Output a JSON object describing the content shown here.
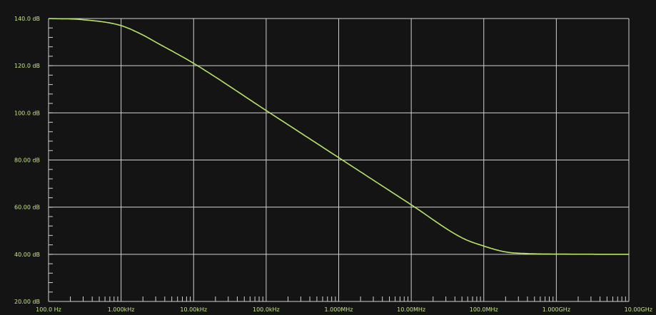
{
  "chart_data": {
    "type": "line",
    "title": "",
    "xlabel": "",
    "ylabel": "",
    "x_scale": "log",
    "x_ticks": [
      {
        "value": 100,
        "label": "100.0 Hz"
      },
      {
        "value": 1000,
        "label": "1.000kHz"
      },
      {
        "value": 10000,
        "label": "10.00kHz"
      },
      {
        "value": 100000,
        "label": "100.0kHz"
      },
      {
        "value": 1000000,
        "label": "1.000MHz"
      },
      {
        "value": 10000000,
        "label": "10.00MHz"
      },
      {
        "value": 100000000,
        "label": "100.0MHz"
      },
      {
        "value": 1000000000,
        "label": "1.000GHz"
      },
      {
        "value": 10000000000,
        "label": "10.00GHz"
      }
    ],
    "y_ticks": [
      {
        "value": 140,
        "label": "140.0 dB"
      },
      {
        "value": 120,
        "label": "120.0 dB"
      },
      {
        "value": 100,
        "label": "100.0 dB"
      },
      {
        "value": 80,
        "label": "80.00 dB"
      },
      {
        "value": 60,
        "label": "60.00 dB"
      },
      {
        "value": 40,
        "label": "40.00 dB"
      },
      {
        "value": 20,
        "label": "20.00 dB"
      }
    ],
    "xlim": [
      100,
      10000000000
    ],
    "ylim": [
      20,
      140
    ],
    "grid": true,
    "colors": {
      "background": "#141414",
      "grid": "#cfcfcf",
      "line": "#b6e36a",
      "labels": "#c8e68a"
    },
    "series": [
      {
        "x": [
          100,
          300,
          1000,
          2000,
          3000,
          10000,
          100000,
          1000000,
          10000000,
          50000000,
          100000000,
          200000000,
          400000000,
          1000000000,
          10000000000
        ],
        "y": [
          140,
          139.5,
          137,
          133,
          130,
          121,
          101,
          81,
          61,
          47,
          43.5,
          41,
          40.3,
          40.1,
          40
        ]
      }
    ]
  }
}
